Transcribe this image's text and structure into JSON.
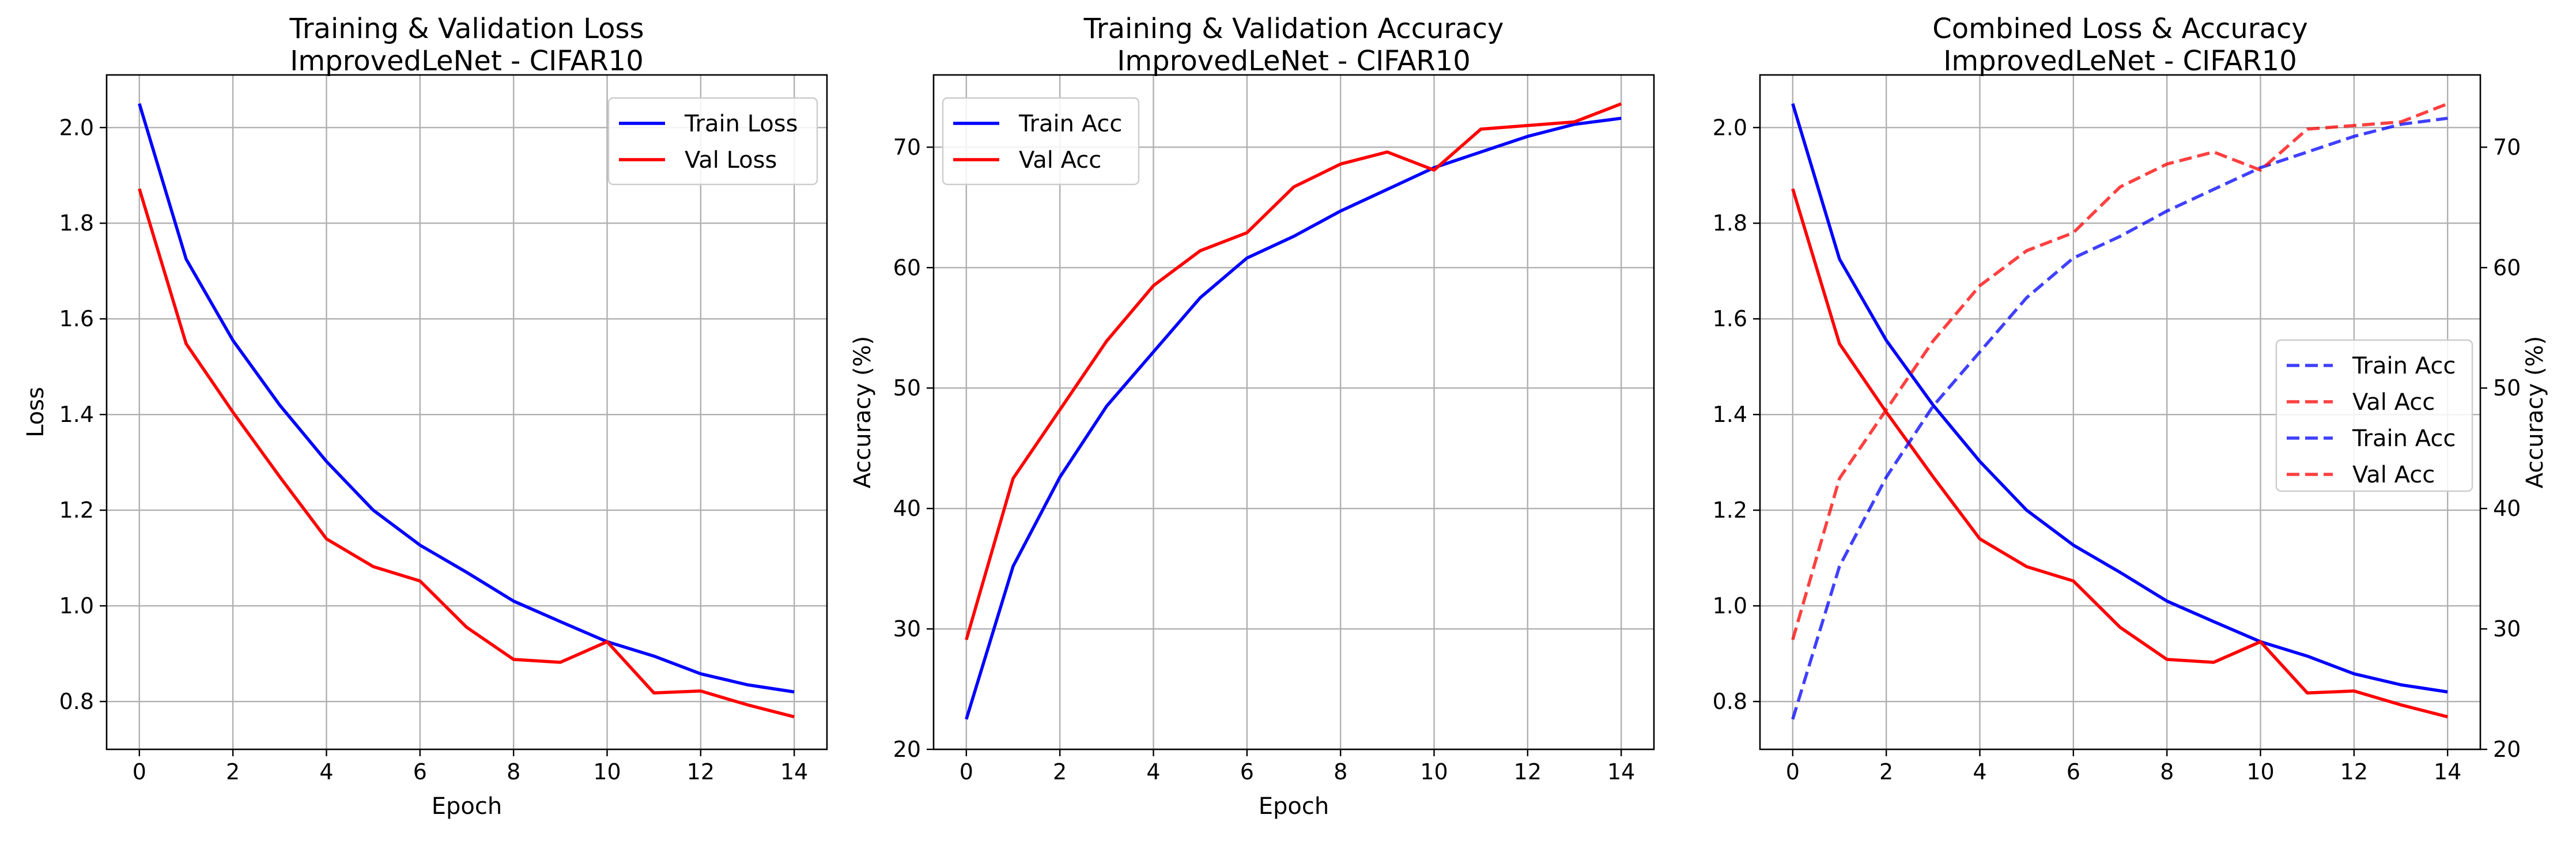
{
  "chart_data": [
    {
      "type": "line",
      "title": "Training & Validation Loss",
      "subtitle": "ImprovedLeNet - CIFAR10",
      "xlabel": "Epoch",
      "ylabel": "Loss",
      "xlim": [
        -0.7,
        14.7
      ],
      "ylim": [
        0.7,
        2.11
      ],
      "xticks": [
        0,
        2,
        4,
        6,
        8,
        10,
        12,
        14
      ],
      "yticks": [
        0.8,
        1.0,
        1.2,
        1.4,
        1.6,
        1.8,
        2.0
      ],
      "ytick_labels": [
        "0.8",
        "1.0",
        "1.2",
        "1.4",
        "1.6",
        "1.8",
        "2.0"
      ],
      "grid": true,
      "legend_position": "upper right",
      "x": [
        0,
        1,
        2,
        3,
        4,
        5,
        6,
        7,
        8,
        9,
        10,
        11,
        12,
        13,
        14
      ],
      "series": [
        {
          "name": "Train Loss",
          "color": "#0000ff",
          "style": "solid",
          "values": [
            2.05,
            1.725,
            1.555,
            1.42,
            1.302,
            1.2,
            1.127,
            1.07,
            1.01,
            0.967,
            0.925,
            0.895,
            0.858,
            0.835,
            0.82
          ]
        },
        {
          "name": "Val Loss",
          "color": "#ff0000",
          "style": "solid",
          "values": [
            1.872,
            1.548,
            1.405,
            1.27,
            1.14,
            1.082,
            1.052,
            0.955,
            0.888,
            0.882,
            0.925,
            0.818,
            0.822,
            0.793,
            0.768
          ]
        }
      ]
    },
    {
      "type": "line",
      "title": "Training & Validation Accuracy",
      "subtitle": "ImprovedLeNet - CIFAR10",
      "xlabel": "Epoch",
      "ylabel": "Accuracy (%)",
      "xlim": [
        -0.7,
        14.7
      ],
      "ylim": [
        20,
        76
      ],
      "xticks": [
        0,
        2,
        4,
        6,
        8,
        10,
        12,
        14
      ],
      "yticks": [
        20,
        30,
        40,
        50,
        60,
        70
      ],
      "ytick_labels": [
        "20",
        "30",
        "40",
        "50",
        "60",
        "70"
      ],
      "grid": true,
      "legend_position": "upper left",
      "x": [
        0,
        1,
        2,
        3,
        4,
        5,
        6,
        7,
        8,
        9,
        10,
        11,
        12,
        13,
        14
      ],
      "series": [
        {
          "name": "Train Acc",
          "color": "#0000ff",
          "style": "solid",
          "values": [
            22.5,
            35.2,
            42.6,
            48.5,
            53.0,
            57.5,
            60.8,
            62.6,
            64.7,
            66.5,
            68.3,
            69.6,
            70.9,
            71.9,
            72.4
          ]
        },
        {
          "name": "Val Acc",
          "color": "#ff0000",
          "style": "solid",
          "values": [
            29.1,
            42.5,
            48.2,
            53.9,
            58.5,
            61.4,
            62.9,
            66.7,
            68.6,
            69.6,
            68.1,
            71.5,
            71.8,
            72.1,
            73.6
          ]
        }
      ]
    },
    {
      "type": "line",
      "title": "Combined Loss & Accuracy",
      "subtitle": "ImprovedLeNet - CIFAR10",
      "xlabel": "",
      "ylabel": "",
      "y2label": "Accuracy (%)",
      "xlim": [
        -0.7,
        14.7
      ],
      "ylim": [
        0.7,
        2.11
      ],
      "y2lim": [
        20,
        76
      ],
      "xticks": [
        0,
        2,
        4,
        6,
        8,
        10,
        12,
        14
      ],
      "yticks": [
        0.8,
        1.0,
        1.2,
        1.4,
        1.6,
        1.8,
        2.0
      ],
      "ytick_labels": [
        "0.8",
        "1.0",
        "1.2",
        "1.4",
        "1.6",
        "1.8",
        "2.0"
      ],
      "y2ticks": [
        20,
        30,
        40,
        50,
        60,
        70
      ],
      "y2tick_labels": [
        "20",
        "30",
        "40",
        "50",
        "60",
        "70"
      ],
      "grid": true,
      "legend_position": "center right",
      "legend_entries": [
        {
          "label": "Train Acc",
          "color": "#0000ff",
          "style": "dashed"
        },
        {
          "label": "Val Acc",
          "color": "#ff0000",
          "style": "dashed"
        },
        {
          "label": "Train Acc",
          "color": "#0000ff",
          "style": "dashed"
        },
        {
          "label": "Val Acc",
          "color": "#ff0000",
          "style": "dashed"
        }
      ],
      "x": [
        0,
        1,
        2,
        3,
        4,
        5,
        6,
        7,
        8,
        9,
        10,
        11,
        12,
        13,
        14
      ],
      "series": [
        {
          "color": "#0000ff",
          "style": "solid",
          "axis": "left",
          "values": [
            2.05,
            1.725,
            1.555,
            1.42,
            1.302,
            1.2,
            1.127,
            1.07,
            1.01,
            0.967,
            0.925,
            0.895,
            0.858,
            0.835,
            0.82
          ]
        },
        {
          "color": "#ff0000",
          "style": "solid",
          "axis": "left",
          "values": [
            1.872,
            1.548,
            1.405,
            1.27,
            1.14,
            1.082,
            1.052,
            0.955,
            0.888,
            0.882,
            0.925,
            0.818,
            0.822,
            0.793,
            0.768
          ]
        },
        {
          "color": "#0000ff",
          "style": "dashed",
          "axis": "right",
          "values": [
            22.5,
            35.2,
            42.6,
            48.5,
            53.0,
            57.5,
            60.8,
            62.6,
            64.7,
            66.5,
            68.3,
            69.6,
            70.9,
            71.9,
            72.4
          ]
        },
        {
          "color": "#ff0000",
          "style": "dashed",
          "axis": "right",
          "values": [
            29.1,
            42.5,
            48.2,
            53.9,
            58.5,
            61.4,
            62.9,
            66.7,
            68.6,
            69.6,
            68.1,
            71.5,
            71.8,
            72.1,
            73.6
          ]
        }
      ]
    }
  ]
}
